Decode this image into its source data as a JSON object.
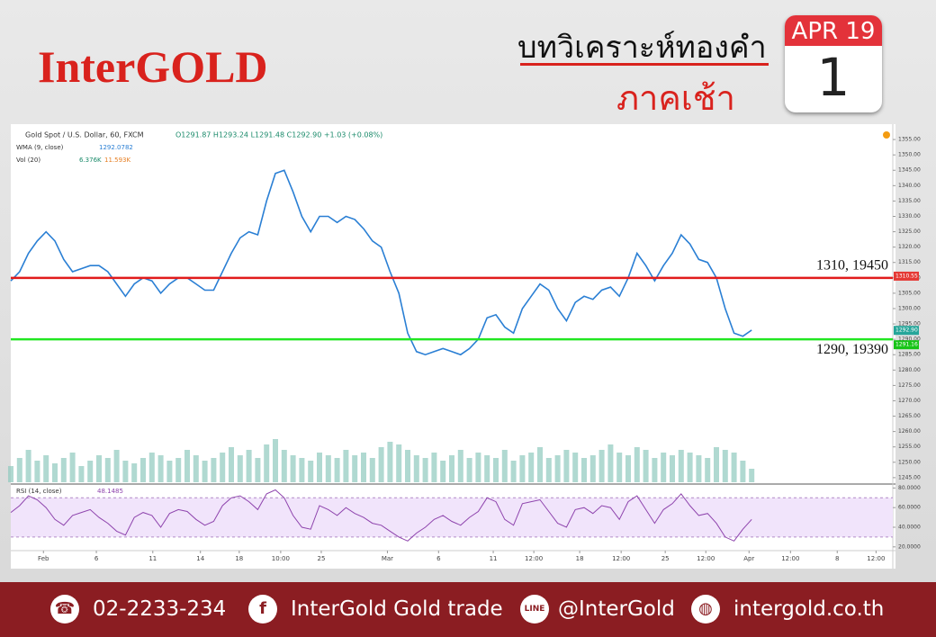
{
  "header": {
    "brand": "InterGOLD",
    "title": "บทวิเคราะห์ทองคำ",
    "subtitle": "ภาคเช้า",
    "month": "APR 19",
    "day": "1"
  },
  "chart_data": {
    "type": "line",
    "symbol": "Gold Spot / U.S. Dollar, 60, FXCM",
    "ohlc": "O1291.87 H1293.24 L1291.48 C1292.90 +1.03 (+0.08%)",
    "wma_label": "WMA (9, close)",
    "wma_value": "1292.0782",
    "vol_label": "Vol (20)",
    "vol_values": [
      "6.376K",
      "11.593K"
    ],
    "rsi_label": "RSI (14, close)",
    "rsi_value": "48.1485",
    "xlim": [
      0,
      100
    ],
    "xticks": [
      {
        "value": 3.7,
        "label": "Feb"
      },
      {
        "value": 9.7,
        "label": "6"
      },
      {
        "value": 16.1,
        "label": "11"
      },
      {
        "value": 21.5,
        "label": "14"
      },
      {
        "value": 25.9,
        "label": "18"
      },
      {
        "value": 30.6,
        "label": "10:00"
      },
      {
        "value": 35.2,
        "label": "25"
      },
      {
        "value": 42.7,
        "label": "Mar"
      },
      {
        "value": 48.5,
        "label": "6"
      },
      {
        "value": 54.7,
        "label": "11"
      },
      {
        "value": 59.3,
        "label": "12:00"
      },
      {
        "value": 64.5,
        "label": "18"
      },
      {
        "value": 69.2,
        "label": "12:00"
      },
      {
        "value": 74.2,
        "label": "25"
      },
      {
        "value": 78.8,
        "label": "12:00"
      },
      {
        "value": 83.7,
        "label": "Apr"
      },
      {
        "value": 88.4,
        "label": "12:00"
      },
      {
        "value": 93.7,
        "label": "8"
      },
      {
        "value": 98.1,
        "label": "12:00"
      }
    ],
    "ylim": [
      1243.5,
      1360
    ],
    "yticks": [
      {
        "value": 1245,
        "label": "1245.00"
      },
      {
        "value": 1250,
        "label": "1250.00"
      },
      {
        "value": 1255,
        "label": "1255.00"
      },
      {
        "value": 1260,
        "label": "1260.00"
      },
      {
        "value": 1265,
        "label": "1265.00"
      },
      {
        "value": 1270,
        "label": "1270.00"
      },
      {
        "value": 1275,
        "label": "1275.00"
      },
      {
        "value": 1280,
        "label": "1280.00"
      },
      {
        "value": 1285,
        "label": "1285.00"
      },
      {
        "value": 1290,
        "label": "1290.00"
      },
      {
        "value": 1295,
        "label": "1295.00"
      },
      {
        "value": 1300,
        "label": "1300.00"
      },
      {
        "value": 1305,
        "label": "1305.00"
      },
      {
        "value": 1310,
        "label": "1310.00"
      },
      {
        "value": 1315,
        "label": "1315.00"
      },
      {
        "value": 1320,
        "label": "1320.00"
      },
      {
        "value": 1325,
        "label": "1325.00"
      },
      {
        "value": 1330,
        "label": "1330.00"
      },
      {
        "value": 1335,
        "label": "1335.00"
      },
      {
        "value": 1340,
        "label": "1340.00"
      },
      {
        "value": 1345,
        "label": "1345.00"
      },
      {
        "value": 1350,
        "label": "1350.00"
      },
      {
        "value": 1355,
        "label": "1355.00"
      }
    ],
    "x": [
      0,
      1,
      2,
      3,
      4,
      5,
      6,
      7,
      8,
      9,
      10,
      11,
      12,
      13,
      14,
      15,
      16,
      17,
      18,
      19,
      20,
      21,
      22,
      23,
      24,
      25,
      26,
      27,
      28,
      29,
      30,
      31,
      32,
      33,
      34,
      35,
      36,
      37,
      38,
      39,
      40,
      41,
      42,
      43,
      44,
      45,
      46,
      47,
      48,
      49,
      50,
      51,
      52,
      53,
      54,
      55,
      56,
      57,
      58,
      59,
      60,
      61,
      62,
      63,
      64,
      65,
      66,
      67,
      68,
      69,
      70,
      71,
      72,
      73,
      74,
      75,
      76,
      77,
      78,
      79,
      80,
      81,
      82,
      83,
      84
    ],
    "series": [
      {
        "color": "#2a7fd4",
        "values": [
          1309,
          1312,
          1318,
          1322,
          1325,
          1322,
          1316,
          1312,
          1313,
          1314,
          1314,
          1312,
          1308,
          1304,
          1308,
          1310,
          1309,
          1305,
          1308,
          1310,
          1310,
          1308,
          1306,
          1306,
          1312,
          1318,
          1323,
          1325,
          1324,
          1335,
          1344,
          1345,
          1338,
          1330,
          1325,
          1330,
          1330,
          1328,
          1330,
          1329,
          1326,
          1322,
          1320,
          1312,
          1305,
          1292,
          1286,
          1285,
          1286,
          1287,
          1286,
          1285,
          1287,
          1290,
          1297,
          1298,
          1294,
          1292,
          1300,
          1304,
          1308,
          1306,
          1300,
          1296,
          1302,
          1304,
          1303,
          1306,
          1307,
          1304,
          1310,
          1318,
          1314,
          1309,
          1314,
          1318,
          1324,
          1321,
          1316,
          1315,
          1310,
          1300,
          1292,
          1291,
          1293
        ]
      }
    ],
    "volume": {
      "color": "#8fc9bd",
      "values": [
        6,
        9,
        12,
        8,
        10,
        7,
        9,
        11,
        6,
        8,
        10,
        9,
        12,
        8,
        7,
        9,
        11,
        10,
        8,
        9,
        12,
        10,
        8,
        9,
        11,
        13,
        10,
        12,
        9,
        14,
        16,
        12,
        10,
        9,
        8,
        11,
        10,
        9,
        12,
        10,
        11,
        9,
        13,
        15,
        14,
        12,
        10,
        9,
        11,
        8,
        10,
        12,
        9,
        11,
        10,
        9,
        12,
        8,
        10,
        11,
        13,
        9,
        10,
        12,
        11,
        9,
        10,
        12,
        14,
        11,
        10,
        13,
        12,
        9,
        11,
        10,
        12,
        11,
        10,
        9,
        13,
        12,
        11,
        8,
        5
      ]
    },
    "levels": [
      {
        "value": 1310,
        "label": "1310, 19450",
        "color": "#e11b1b"
      },
      {
        "value": 1290,
        "label": "1290, 19390",
        "color": "#22e622"
      }
    ],
    "price_tags": [
      {
        "value": 1310.55,
        "label": "1310.55",
        "color": "#e53935"
      },
      {
        "value": 1292.9,
        "label": "1292.90",
        "color": "#26a69a"
      },
      {
        "value": 1291.16,
        "label": "1291.16",
        "color": "#17c417"
      }
    ],
    "rsi": {
      "color": "#8e44ad",
      "ylim": [
        18,
        84
      ],
      "band": [
        30,
        70
      ],
      "yticks": [
        {
          "value": 20,
          "label": "20.0000"
        },
        {
          "value": 40,
          "label": "40.0000"
        },
        {
          "value": 60,
          "label": "60.0000"
        },
        {
          "value": 80,
          "label": "80.0000"
        }
      ],
      "values": [
        55,
        62,
        72,
        68,
        60,
        48,
        42,
        52,
        55,
        58,
        50,
        44,
        36,
        32,
        50,
        55,
        52,
        40,
        54,
        58,
        56,
        48,
        42,
        46,
        62,
        70,
        72,
        66,
        58,
        74,
        78,
        70,
        52,
        40,
        38,
        62,
        58,
        52,
        60,
        54,
        50,
        44,
        42,
        36,
        30,
        26,
        34,
        40,
        48,
        52,
        46,
        42,
        50,
        56,
        70,
        66,
        48,
        42,
        64,
        66,
        68,
        56,
        44,
        40,
        58,
        60,
        54,
        62,
        60,
        48,
        66,
        72,
        58,
        44,
        58,
        64,
        74,
        62,
        52,
        54,
        44,
        30,
        26,
        38,
        48
      ]
    }
  },
  "footer": {
    "phone": "02-2233-234",
    "facebook": "InterGold Gold trade",
    "line": "@InterGold",
    "web": "intergold.co.th"
  }
}
